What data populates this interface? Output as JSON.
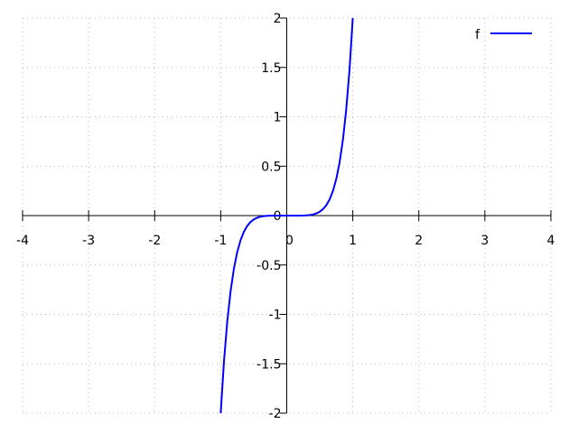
{
  "chart_data": {
    "type": "line",
    "title": "",
    "xlabel": "",
    "ylabel": "",
    "xlim": [
      -4,
      4
    ],
    "ylim": [
      -2,
      2
    ],
    "grid": true,
    "legend_placement": "top-right",
    "x_ticks": [
      "-4",
      "-3",
      "-2",
      "-1",
      "0",
      "1",
      "2",
      "3",
      "4"
    ],
    "y_ticks": [
      "-2",
      "-1.5",
      "-1",
      "-0.5",
      "0",
      "0.5",
      "1",
      "1.5",
      "2"
    ],
    "series": [
      {
        "name": "f",
        "color": "#0000ff",
        "x": [
          -1,
          -0.95,
          -0.9,
          -0.85,
          -0.8,
          -0.75,
          -0.7,
          -0.65,
          -0.6,
          -0.55,
          -0.5,
          -0.45,
          -0.4,
          -0.35,
          -0.3,
          -0.25,
          -0.2,
          -0.15,
          -0.1,
          -0.05,
          0,
          0.05,
          0.1,
          0.15,
          0.2,
          0.25,
          0.3,
          0.35,
          0.4,
          0.45,
          0.5,
          0.55,
          0.6,
          0.65,
          0.7,
          0.75,
          0.8,
          0.85,
          0.9,
          0.95,
          1
        ],
        "y": [
          -2,
          -1.4721,
          -1.0688,
          -0.7643,
          -0.5374,
          -0.3708,
          -0.2504,
          -0.1651,
          -0.1058,
          -0.0656,
          -0.0391,
          -0.0222,
          -0.0119,
          -0.0059,
          -0.0027,
          -0.001,
          -0.0003,
          -0.0001,
          0,
          0,
          0,
          0,
          0,
          0.0001,
          0.0003,
          0.001,
          0.0027,
          0.0059,
          0.0119,
          0.0222,
          0.0391,
          0.0656,
          0.1058,
          0.1651,
          0.2504,
          0.3708,
          0.5374,
          0.7643,
          1.0688,
          1.4721,
          2
        ]
      }
    ]
  }
}
